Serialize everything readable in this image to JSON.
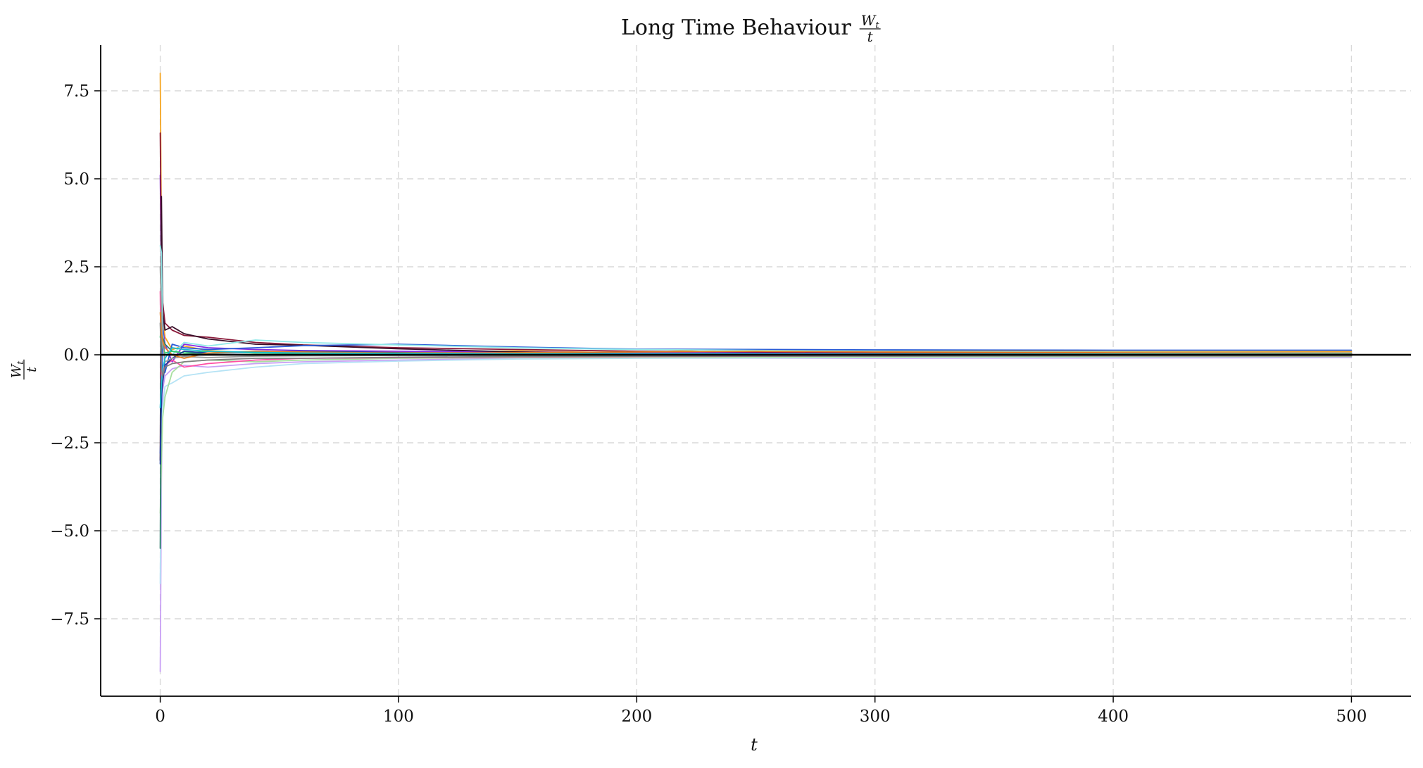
{
  "chart_data": {
    "type": "line",
    "title": "Long Time Behaviour",
    "title_fraction": {
      "numerator": "W",
      "numerator_sub": "t",
      "denominator": "t"
    },
    "xlabel": "t",
    "ylabel_fraction": {
      "numerator": "W",
      "numerator_sub": "t",
      "denominator": "t"
    },
    "xlim": [
      -25,
      525
    ],
    "ylim": [
      -9.7,
      8.8
    ],
    "x_ticks": [
      0,
      100,
      200,
      300,
      400,
      500
    ],
    "x_tick_labels": [
      "0",
      "100",
      "200",
      "300",
      "400",
      "500"
    ],
    "y_ticks": [
      7.5,
      5.0,
      2.5,
      0.0,
      -2.5,
      -5.0,
      -7.5
    ],
    "y_tick_labels": [
      "7.5",
      "5.0",
      "2.5",
      "0.0",
      "−2.5",
      "−5.0",
      "−7.5"
    ],
    "grid": true,
    "horizontal_reference_line": {
      "y": 0,
      "color": "#000000"
    },
    "x_range": [
      0,
      500
    ],
    "series": [
      {
        "color": "#f5a623",
        "values": [
          [
            0,
            8.0
          ],
          [
            0.5,
            3.2
          ],
          [
            1,
            1.1
          ],
          [
            2,
            0.5
          ],
          [
            5,
            0.15
          ],
          [
            10,
            0.25
          ],
          [
            20,
            0.12
          ],
          [
            40,
            0.05
          ],
          [
            60,
            0.09
          ],
          [
            100,
            0.07
          ],
          [
            150,
            0.11
          ],
          [
            200,
            0.05
          ],
          [
            230,
            0.15
          ],
          [
            300,
            0.12
          ],
          [
            400,
            0.09
          ],
          [
            500,
            0.09
          ]
        ]
      },
      {
        "color": "#c9a0f5",
        "values": [
          [
            0,
            -9.0
          ],
          [
            0.5,
            -3.5
          ],
          [
            1,
            -1.0
          ],
          [
            2,
            -0.6
          ],
          [
            5,
            -0.4
          ],
          [
            10,
            -0.3
          ],
          [
            20,
            -0.35
          ],
          [
            40,
            -0.25
          ],
          [
            60,
            -0.2
          ],
          [
            100,
            -0.15
          ],
          [
            150,
            -0.1
          ],
          [
            200,
            -0.09
          ],
          [
            300,
            -0.1
          ],
          [
            400,
            -0.09
          ],
          [
            500,
            -0.08
          ]
        ]
      },
      {
        "color": "#8a2be2",
        "values": [
          [
            0,
            5.1
          ],
          [
            0.5,
            2.0
          ],
          [
            1,
            0.8
          ],
          [
            2,
            0.3
          ],
          [
            5,
            -0.2
          ],
          [
            10,
            0.3
          ],
          [
            20,
            0.2
          ],
          [
            40,
            0.15
          ],
          [
            60,
            0.12
          ],
          [
            100,
            0.1
          ],
          [
            150,
            0.08
          ],
          [
            200,
            0.06
          ],
          [
            300,
            0.05
          ],
          [
            400,
            0.04
          ],
          [
            500,
            0.04
          ]
        ]
      },
      {
        "color": "#8b1a3a",
        "values": [
          [
            0,
            6.3
          ],
          [
            0.5,
            2.5
          ],
          [
            1,
            1.5
          ],
          [
            2,
            0.9
          ],
          [
            5,
            0.7
          ],
          [
            10,
            0.55
          ],
          [
            20,
            0.5
          ],
          [
            40,
            0.35
          ],
          [
            60,
            0.28
          ],
          [
            100,
            0.2
          ],
          [
            150,
            0.15
          ],
          [
            200,
            0.1
          ],
          [
            300,
            0.06
          ],
          [
            400,
            0.04
          ],
          [
            500,
            0.03
          ]
        ]
      },
      {
        "color": "#3a0f2a",
        "values": [
          [
            0,
            -3.0
          ],
          [
            0.5,
            4.5
          ],
          [
            1,
            1.2
          ],
          [
            2,
            0.7
          ],
          [
            5,
            0.8
          ],
          [
            10,
            0.6
          ],
          [
            20,
            0.45
          ],
          [
            40,
            0.3
          ],
          [
            60,
            0.27
          ],
          [
            100,
            0.17
          ],
          [
            150,
            0.08
          ],
          [
            200,
            0.02
          ],
          [
            250,
            -0.05
          ],
          [
            300,
            -0.03
          ],
          [
            400,
            -0.02
          ],
          [
            500,
            -0.02
          ]
        ]
      },
      {
        "color": "#2a5bd7",
        "values": [
          [
            0,
            -2.8
          ],
          [
            0.5,
            -1.5
          ],
          [
            1,
            1.0
          ],
          [
            2,
            -0.5
          ],
          [
            5,
            0.3
          ],
          [
            10,
            0.2
          ],
          [
            20,
            0.15
          ],
          [
            40,
            0.2
          ],
          [
            60,
            0.26
          ],
          [
            100,
            0.3
          ],
          [
            150,
            0.22
          ],
          [
            200,
            0.16
          ],
          [
            300,
            0.14
          ],
          [
            400,
            0.13
          ],
          [
            500,
            0.13
          ]
        ]
      },
      {
        "color": "#b5e3f5",
        "values": [
          [
            0,
            -6.5
          ],
          [
            0.5,
            -2.0
          ],
          [
            1,
            -1.5
          ],
          [
            2,
            -0.9
          ],
          [
            5,
            -0.8
          ],
          [
            10,
            -0.6
          ],
          [
            20,
            -0.5
          ],
          [
            40,
            -0.35
          ],
          [
            60,
            -0.25
          ],
          [
            100,
            -0.18
          ],
          [
            150,
            -0.12
          ],
          [
            200,
            -0.1
          ],
          [
            300,
            -0.08
          ],
          [
            400,
            -0.06
          ],
          [
            500,
            -0.05
          ]
        ]
      },
      {
        "color": "#8ee8e8",
        "values": [
          [
            0,
            3.1
          ],
          [
            0.5,
            2.9
          ],
          [
            1,
            0.6
          ],
          [
            2,
            0.2
          ],
          [
            5,
            0.0
          ],
          [
            10,
            0.35
          ],
          [
            20,
            0.25
          ],
          [
            40,
            0.42
          ],
          [
            60,
            0.35
          ],
          [
            100,
            0.28
          ],
          [
            150,
            0.2
          ],
          [
            200,
            0.15
          ],
          [
            300,
            0.1
          ],
          [
            400,
            0.07
          ],
          [
            500,
            0.06
          ]
        ]
      },
      {
        "color": "#a8dfa0",
        "values": [
          [
            0,
            -4.5
          ],
          [
            0.5,
            -3.0
          ],
          [
            1,
            -1.8
          ],
          [
            2,
            -1.2
          ],
          [
            5,
            -0.5
          ],
          [
            10,
            -0.2
          ],
          [
            20,
            -0.15
          ],
          [
            40,
            -0.2
          ],
          [
            60,
            -0.15
          ],
          [
            100,
            -0.1
          ],
          [
            150,
            -0.08
          ],
          [
            200,
            -0.07
          ],
          [
            300,
            -0.06
          ],
          [
            400,
            -0.05
          ],
          [
            500,
            -0.05
          ]
        ]
      },
      {
        "color": "#2e7d6b",
        "values": [
          [
            0,
            -5.5
          ],
          [
            0.5,
            1.0
          ],
          [
            1,
            0.5
          ],
          [
            2,
            0.3
          ],
          [
            5,
            0.1
          ],
          [
            10,
            0.05
          ],
          [
            20,
            0.02
          ],
          [
            40,
            0.0
          ],
          [
            60,
            0.02
          ],
          [
            100,
            0.03
          ],
          [
            150,
            0.02
          ],
          [
            200,
            0.0
          ],
          [
            300,
            -0.01
          ],
          [
            400,
            0.0
          ],
          [
            500,
            0.01
          ]
        ]
      },
      {
        "color": "#ff4fa3",
        "values": [
          [
            0,
            1.8
          ],
          [
            0.5,
            -1.0
          ],
          [
            1,
            -0.5
          ],
          [
            2,
            -0.3
          ],
          [
            5,
            -0.15
          ],
          [
            10,
            -0.35
          ],
          [
            20,
            -0.25
          ],
          [
            40,
            -0.15
          ],
          [
            60,
            -0.1
          ],
          [
            100,
            -0.08
          ],
          [
            150,
            -0.06
          ],
          [
            200,
            -0.05
          ],
          [
            300,
            -0.03
          ],
          [
            400,
            -0.03
          ],
          [
            500,
            -0.03
          ]
        ]
      },
      {
        "color": "#2ecc71",
        "values": [
          [
            0,
            0.5
          ],
          [
            0.5,
            0.8
          ],
          [
            1,
            0.2
          ],
          [
            2,
            0.05
          ],
          [
            5,
            0.1
          ],
          [
            10,
            0.05
          ],
          [
            20,
            0.1
          ],
          [
            40,
            0.05
          ],
          [
            60,
            0.04
          ],
          [
            100,
            0.03
          ],
          [
            150,
            0.03
          ],
          [
            200,
            0.02
          ],
          [
            300,
            0.02
          ],
          [
            400,
            0.02
          ],
          [
            500,
            0.01
          ]
        ]
      },
      {
        "color": "#1f3f9a",
        "values": [
          [
            0,
            -3.1
          ],
          [
            0.5,
            -1.2
          ],
          [
            1,
            -0.8
          ],
          [
            2,
            -0.3
          ],
          [
            5,
            -0.1
          ],
          [
            10,
            0.1
          ],
          [
            20,
            0.05
          ],
          [
            40,
            0.08
          ],
          [
            60,
            0.1
          ],
          [
            100,
            0.06
          ],
          [
            150,
            0.04
          ],
          [
            200,
            0.03
          ],
          [
            300,
            0.02
          ],
          [
            400,
            0.01
          ],
          [
            500,
            0.0
          ]
        ]
      },
      {
        "color": "#9b9b9b",
        "values": [
          [
            0,
            2.5
          ],
          [
            0.5,
            1.2
          ],
          [
            1,
            0.3
          ],
          [
            2,
            -0.2
          ],
          [
            5,
            -0.1
          ],
          [
            10,
            -0.05
          ],
          [
            20,
            -0.08
          ],
          [
            40,
            -0.04
          ],
          [
            60,
            -0.03
          ],
          [
            100,
            -0.02
          ],
          [
            150,
            -0.02
          ],
          [
            200,
            -0.01
          ],
          [
            300,
            -0.01
          ],
          [
            400,
            0.0
          ],
          [
            500,
            0.0
          ]
        ]
      },
      {
        "color": "#e67e22",
        "values": [
          [
            0,
            1.2
          ],
          [
            0.5,
            0.6
          ],
          [
            1,
            0.4
          ],
          [
            2,
            0.2
          ],
          [
            5,
            0.0
          ],
          [
            10,
            -0.1
          ],
          [
            20,
            0.05
          ],
          [
            40,
            0.1
          ],
          [
            60,
            0.08
          ],
          [
            100,
            0.05
          ],
          [
            150,
            0.06
          ],
          [
            200,
            0.08
          ],
          [
            250,
            0.1
          ],
          [
            300,
            0.08
          ],
          [
            400,
            0.06
          ],
          [
            500,
            0.05
          ]
        ]
      },
      {
        "color": "#17becf",
        "values": [
          [
            0,
            -1.5
          ],
          [
            0.5,
            -0.8
          ],
          [
            1,
            -0.4
          ],
          [
            2,
            -0.1
          ],
          [
            5,
            0.2
          ],
          [
            10,
            0.15
          ],
          [
            20,
            0.1
          ],
          [
            40,
            0.07
          ],
          [
            60,
            0.05
          ],
          [
            100,
            0.04
          ],
          [
            150,
            0.03
          ],
          [
            200,
            0.03
          ],
          [
            300,
            0.02
          ],
          [
            400,
            0.02
          ],
          [
            500,
            0.02
          ]
        ]
      },
      {
        "color": "#7f7f7f",
        "values": [
          [
            0,
            0.9
          ],
          [
            0.5,
            -0.4
          ],
          [
            1,
            -0.6
          ],
          [
            2,
            -0.35
          ],
          [
            5,
            -0.25
          ],
          [
            10,
            -0.2
          ],
          [
            20,
            -0.15
          ],
          [
            40,
            -0.1
          ],
          [
            60,
            -0.1
          ],
          [
            100,
            -0.07
          ],
          [
            150,
            -0.05
          ],
          [
            200,
            -0.04
          ],
          [
            300,
            -0.04
          ],
          [
            400,
            -0.03
          ],
          [
            500,
            -0.03
          ]
        ]
      }
    ]
  }
}
